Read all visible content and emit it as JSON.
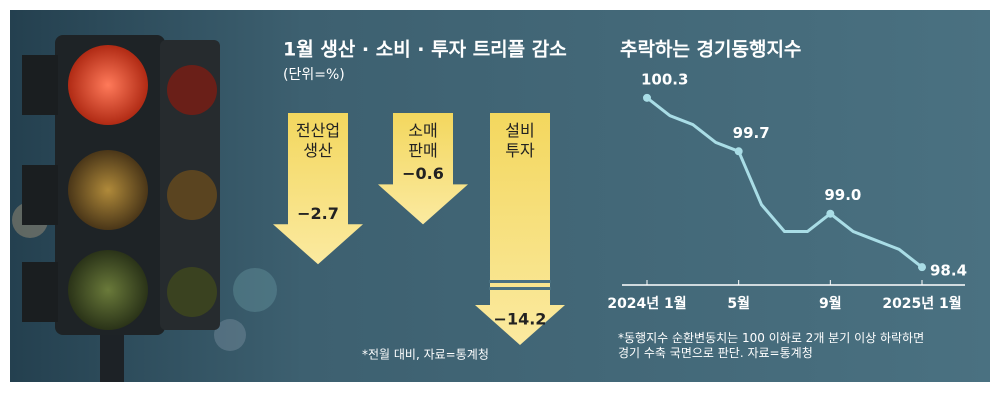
{
  "chart_data": [
    {
      "type": "bar",
      "title": "1월 생산 · 소비 · 투자 트리플 감소",
      "subtitle": "(단위=%)",
      "categories": [
        "전산업\n생산",
        "소매\n판매",
        "설비\n투자"
      ],
      "values": [
        -2.7,
        -0.6,
        -14.2
      ],
      "value_labels": [
        "−2.7",
        "−0.6",
        "−14.2"
      ],
      "color": "#f6df78",
      "note": "*전월 대비, 자료=통계청"
    },
    {
      "type": "line",
      "title": "추락하는 경기동행지수",
      "categories": [
        "2024년 1월",
        null,
        null,
        null,
        "5월",
        null,
        null,
        null,
        "9월",
        null,
        null,
        null,
        "2025년 1월"
      ],
      "values": [
        100.3,
        100.1,
        100.0,
        99.8,
        99.7,
        99.1,
        98.8,
        98.8,
        99.0,
        98.8,
        98.7,
        98.6,
        98.4
      ],
      "value_labels": [
        "100.3",
        null,
        null,
        null,
        "99.7",
        null,
        null,
        null,
        "99.0",
        null,
        null,
        null,
        "98.4"
      ],
      "ylim": [
        98.2,
        100.5
      ],
      "color": "#a9dde6",
      "note": "*동행지수 순환변동치는 100 이하로 2개 분기 이상 하락하면\n경기 수축 국면으로 판단. 자료=통계청"
    }
  ]
}
